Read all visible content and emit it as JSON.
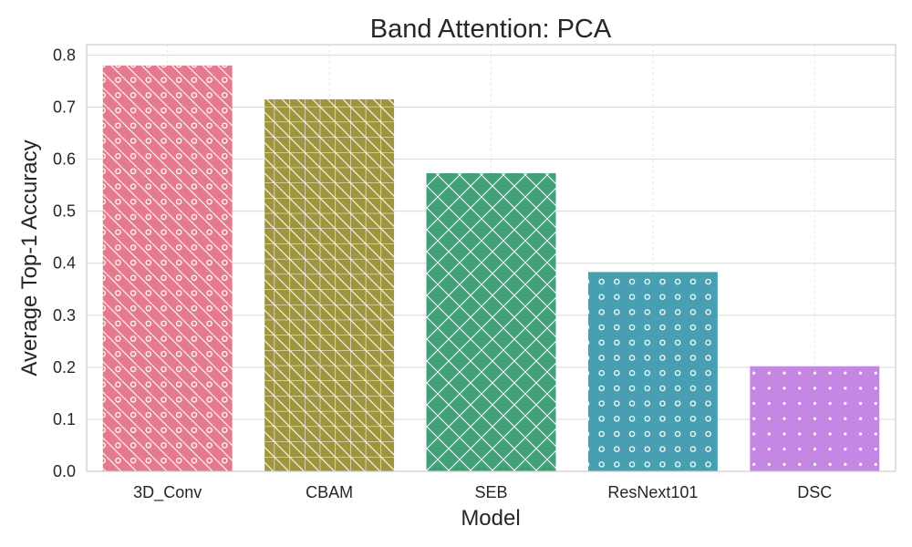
{
  "chart_data": {
    "type": "bar",
    "title": "Band Attention: PCA",
    "xlabel": "Model",
    "ylabel": "Average Top-1 Accuracy",
    "categories": [
      "3D_Conv",
      "CBAM",
      "SEB",
      "ResNext101",
      "DSC"
    ],
    "values": [
      0.78,
      0.715,
      0.573,
      0.383,
      0.202
    ],
    "ylim": [
      0,
      0.82
    ],
    "yticks": [
      0.0,
      0.1,
      0.2,
      0.3,
      0.4,
      0.5,
      0.6,
      0.7,
      0.8
    ],
    "ytick_labels": [
      "0.0",
      "0.1",
      "0.2",
      "0.3",
      "0.4",
      "0.5",
      "0.6",
      "0.7",
      "0.8"
    ],
    "grid": true,
    "colors": [
      "#e57a8f",
      "#a0953f",
      "#42a078",
      "#479fb1",
      "#c487e3"
    ],
    "hatches": [
      "circle-diagonal",
      "grid-diagonal",
      "crosshatch",
      "circle",
      "dot"
    ]
  }
}
